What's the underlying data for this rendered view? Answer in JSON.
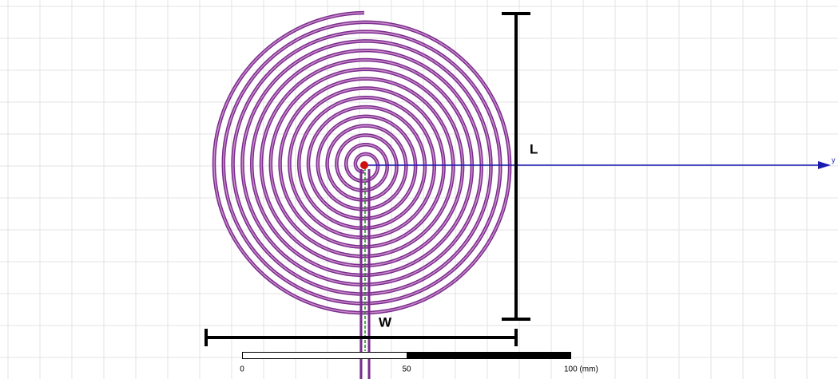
{
  "labels": {
    "length": "L",
    "width": "W"
  },
  "axis": {
    "label": "y"
  },
  "scale_bar": {
    "ticks": [
      "0",
      "50",
      "100 (mm)"
    ]
  }
}
